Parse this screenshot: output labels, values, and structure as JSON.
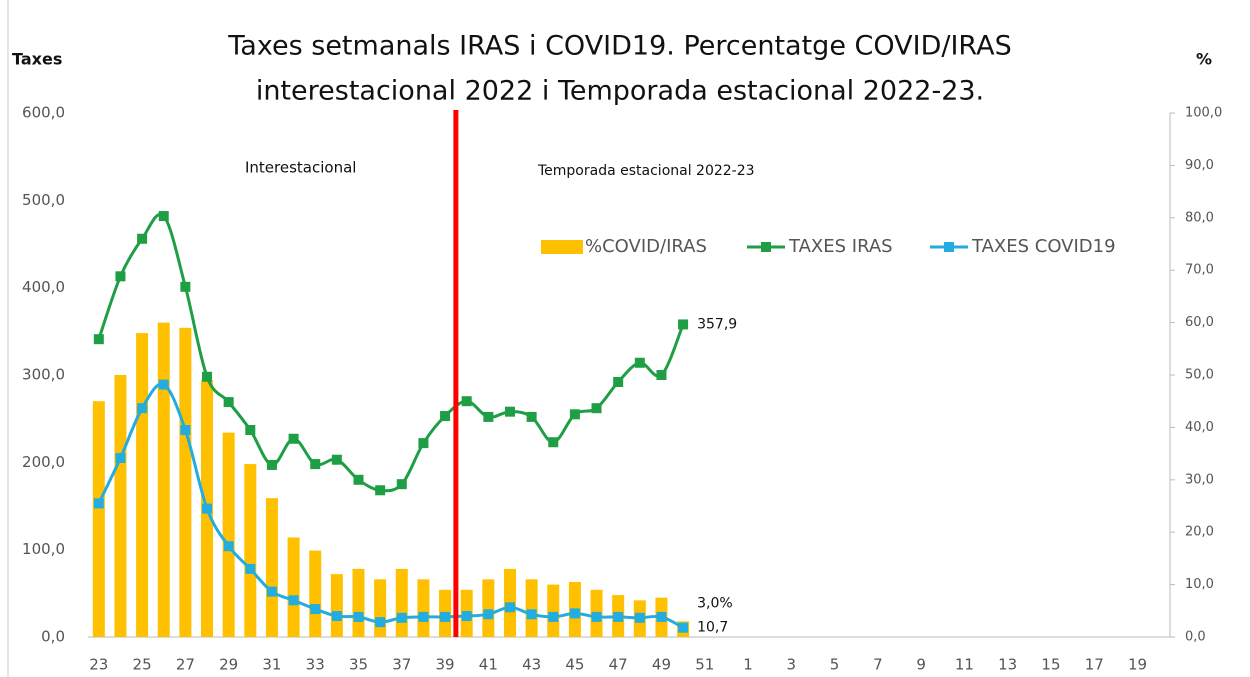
{
  "chart_data": {
    "type": "combo",
    "title": [
      "Taxes setmanals IRAS i COVID19. Percentatge COVID/IRAS",
      "interestacional 2022 i  Temporada estacional 2022-23."
    ],
    "ylabel": "Taxes",
    "y2label": "%",
    "annotations": [
      "Interestacional",
      "Temporada estacional 2022-23"
    ],
    "categories": [
      "23",
      null,
      "25",
      null,
      "27",
      null,
      "29",
      null,
      "31",
      null,
      "33",
      null,
      "35",
      null,
      "37",
      null,
      "39",
      null,
      "41",
      null,
      "43",
      null,
      "45",
      null,
      "47",
      null,
      "49",
      null,
      "51",
      null,
      "1",
      null,
      "3",
      null,
      "5",
      null,
      "7",
      null,
      "9",
      null,
      "11",
      null,
      "13",
      null,
      "15",
      null,
      "17",
      null,
      "19",
      null
    ],
    "series": [
      {
        "name": "%COVID/IRAS",
        "kind": "bar",
        "axis": "y2",
        "color": "#ffc000",
        "values": [
          45,
          50,
          58,
          60,
          59,
          49,
          39,
          33,
          26.5,
          19,
          16.5,
          12,
          13,
          11,
          13,
          11,
          9,
          9,
          11,
          13,
          11,
          10,
          10.5,
          9,
          8,
          7,
          7.5,
          3.0,
          null,
          null,
          null,
          null,
          null,
          null,
          null,
          null,
          null,
          null,
          null,
          null,
          null,
          null,
          null,
          null,
          null,
          null,
          null,
          null,
          null,
          null
        ],
        "value_labels": [
          null,
          null,
          null,
          null,
          null,
          null,
          null,
          null,
          null,
          null,
          null,
          null,
          null,
          null,
          null,
          null,
          null,
          null,
          null,
          null,
          null,
          null,
          null,
          null,
          null,
          null,
          null,
          "3,0%",
          null,
          null,
          null,
          null,
          null,
          null,
          null,
          null,
          null,
          null,
          null,
          null,
          null,
          null,
          null,
          null,
          null,
          null,
          null,
          null,
          null,
          null
        ]
      },
      {
        "name": "TAXES IRAS",
        "kind": "line",
        "color": "#1e9e45",
        "values": [
          341,
          413,
          456,
          482,
          401,
          298,
          269,
          237,
          197,
          227,
          198,
          203,
          180,
          168,
          175,
          222,
          253,
          270,
          252,
          258,
          252,
          223,
          255,
          262,
          292,
          314,
          300,
          357.9,
          null,
          null,
          null,
          null,
          null,
          null,
          null,
          null,
          null,
          null,
          null,
          null,
          null,
          null,
          null,
          null,
          null,
          null,
          null,
          null,
          null,
          null
        ],
        "value_labels": [
          null,
          null,
          null,
          null,
          null,
          null,
          null,
          null,
          null,
          null,
          null,
          null,
          null,
          null,
          null,
          null,
          null,
          null,
          null,
          null,
          null,
          null,
          null,
          null,
          null,
          null,
          null,
          "357,9",
          null,
          null,
          null,
          null,
          null,
          null,
          null,
          null,
          null,
          null,
          null,
          null,
          null,
          null,
          null,
          null,
          null,
          null,
          null,
          null,
          null,
          null
        ]
      },
      {
        "name": "TAXES COVID19",
        "kind": "line",
        "color": "#22acdf",
        "values": [
          153,
          205,
          262,
          289,
          237,
          147,
          104,
          78,
          52,
          42,
          32,
          24,
          23,
          17,
          22,
          23,
          23,
          24,
          26,
          34,
          26,
          23,
          27,
          23,
          23,
          22,
          23,
          10.7,
          null,
          null,
          null,
          null,
          null,
          null,
          null,
          null,
          null,
          null,
          null,
          null,
          null,
          null,
          null,
          null,
          null,
          null,
          null,
          null,
          null,
          null
        ],
        "value_labels": [
          null,
          null,
          null,
          null,
          null,
          null,
          null,
          null,
          null,
          null,
          null,
          null,
          null,
          null,
          null,
          null,
          null,
          null,
          null,
          null,
          null,
          null,
          null,
          null,
          null,
          null,
          null,
          "10,7",
          null,
          null,
          null,
          null,
          null,
          null,
          null,
          null,
          null,
          null,
          null,
          null,
          null,
          null,
          null,
          null,
          null,
          null,
          null,
          null,
          null,
          null
        ]
      }
    ],
    "ylim": [
      0,
      600
    ],
    "yticks": [
      {
        "value": 0,
        "label": "0,0"
      },
      {
        "value": 100,
        "label": "100,0"
      },
      {
        "value": 200,
        "label": "200,0"
      },
      {
        "value": 300,
        "label": "300,0"
      },
      {
        "value": 400,
        "label": "400,0"
      },
      {
        "value": 500,
        "label": "500,0"
      },
      {
        "value": 600,
        "label": "600,0"
      }
    ],
    "y2lim": [
      0,
      100
    ],
    "y2ticks": [
      {
        "value": 0,
        "label": "0,0"
      },
      {
        "value": 10,
        "label": "10,0"
      },
      {
        "value": 20,
        "label": "20,0"
      },
      {
        "value": 30,
        "label": "30,0"
      },
      {
        "value": 40,
        "label": "40,0"
      },
      {
        "value": 50,
        "label": "50,0"
      },
      {
        "value": 60,
        "label": "60,0"
      },
      {
        "value": 70,
        "label": "70,0"
      },
      {
        "value": 80,
        "label": "80,0"
      },
      {
        "value": 90,
        "label": "90,0"
      },
      {
        "value": 100,
        "label": "100,0"
      }
    ],
    "smooth": true
  }
}
